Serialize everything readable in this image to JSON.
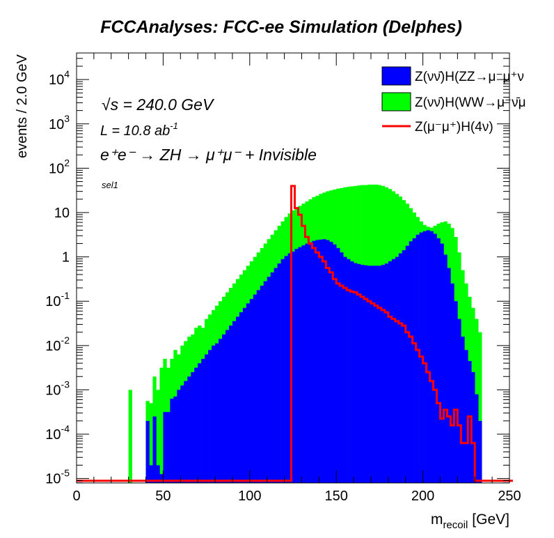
{
  "chart_data": {
    "type": "histogram",
    "title": "FCCAnalyses: FCC-ee Simulation (Delphes)",
    "xlabel_main": "m",
    "xlabel_sub": "recoil",
    "xlabel_unit": "[GeV]",
    "ylabel": "events / 2.0 GeV",
    "xlim": [
      0,
      250
    ],
    "ylim_log10": [
      -5.1,
      4.6
    ],
    "log_y": true,
    "bin_width": 2,
    "x_ticks": [
      0,
      50,
      100,
      150,
      200,
      250
    ],
    "x_tick_labels": [
      "0",
      "50",
      "100",
      "150",
      "200",
      "250"
    ],
    "y_ticks": [
      {
        "mantissa": "10",
        "exponent": "-5"
      },
      {
        "mantissa": "10",
        "exponent": "-4"
      },
      {
        "mantissa": "10",
        "exponent": "-3"
      },
      {
        "mantissa": "10",
        "exponent": "-2"
      },
      {
        "mantissa": "10",
        "exponent": "-1"
      },
      {
        "mantissa": "1",
        "exponent": ""
      },
      {
        "mantissa": "10",
        "exponent": ""
      },
      {
        "mantissa": "10",
        "exponent": "2"
      },
      {
        "mantissa": "10",
        "exponent": "3"
      },
      {
        "mantissa": "10",
        "exponent": "4"
      }
    ],
    "annotations": {
      "sqrt_s": "√s = 240.0 GeV",
      "lumi_base": "L = 10.8 ab",
      "lumi_exp": "-1",
      "process": "e⁺e⁻ → ZH → μ⁺μ⁻ + Invisible",
      "selection": "sel1"
    },
    "legend_position": "top-right",
    "series": [
      {
        "name": "Z(νν̄)H(ZZ→μ⁻μ⁺ν",
        "style": "stacked-fill",
        "color": "#0000ff",
        "log10_values": [
          [
            30,
            -5.2
          ],
          [
            38,
            -5.2
          ],
          [
            40,
            -3.7
          ],
          [
            42,
            -4.7
          ],
          [
            44,
            -3.6
          ],
          [
            46,
            -4.7
          ],
          [
            48,
            -4.9
          ],
          [
            50,
            -3.5
          ],
          [
            52,
            -3.5
          ],
          [
            54,
            -3.2
          ],
          [
            56,
            -3.15
          ],
          [
            58,
            -3.0
          ],
          [
            60,
            -2.9
          ],
          [
            62,
            -2.8
          ],
          [
            64,
            -2.7
          ],
          [
            66,
            -2.6
          ],
          [
            68,
            -2.5
          ],
          [
            70,
            -2.4
          ],
          [
            72,
            -2.3
          ],
          [
            74,
            -2.2
          ],
          [
            76,
            -2.1
          ],
          [
            78,
            -2.0
          ],
          [
            80,
            -1.95
          ],
          [
            82,
            -1.85
          ],
          [
            84,
            -1.75
          ],
          [
            86,
            -1.65
          ],
          [
            88,
            -1.55
          ],
          [
            90,
            -1.45
          ],
          [
            92,
            -1.35
          ],
          [
            94,
            -1.25
          ],
          [
            96,
            -1.15
          ],
          [
            98,
            -1.05
          ],
          [
            100,
            -0.95
          ],
          [
            102,
            -0.85
          ],
          [
            104,
            -0.75
          ],
          [
            106,
            -0.65
          ],
          [
            108,
            -0.55
          ],
          [
            110,
            -0.45
          ],
          [
            112,
            -0.35
          ],
          [
            114,
            -0.25
          ],
          [
            116,
            -0.15
          ],
          [
            118,
            -0.05
          ],
          [
            120,
            0.02
          ],
          [
            122,
            0.08
          ],
          [
            124,
            0.12
          ],
          [
            126,
            0.18
          ],
          [
            128,
            0.22
          ],
          [
            130,
            0.26
          ],
          [
            132,
            0.3
          ],
          [
            134,
            0.33
          ],
          [
            136,
            0.36
          ],
          [
            138,
            0.38
          ],
          [
            140,
            0.39
          ],
          [
            142,
            0.4
          ],
          [
            144,
            0.38
          ],
          [
            146,
            0.34
          ],
          [
            148,
            0.28
          ],
          [
            150,
            0.2
          ],
          [
            152,
            0.1
          ],
          [
            154,
            0.0
          ],
          [
            156,
            -0.05
          ],
          [
            158,
            -0.1
          ],
          [
            160,
            -0.14
          ],
          [
            162,
            -0.16
          ],
          [
            164,
            -0.18
          ],
          [
            166,
            -0.19
          ],
          [
            168,
            -0.2
          ],
          [
            170,
            -0.2
          ],
          [
            172,
            -0.2
          ],
          [
            174,
            -0.2
          ],
          [
            176,
            -0.18
          ],
          [
            178,
            -0.15
          ],
          [
            180,
            -0.1
          ],
          [
            182,
            -0.05
          ],
          [
            184,
            0.0
          ],
          [
            186,
            0.08
          ],
          [
            188,
            0.15
          ],
          [
            190,
            0.25
          ],
          [
            192,
            0.35
          ],
          [
            194,
            0.42
          ],
          [
            196,
            0.5
          ],
          [
            198,
            0.55
          ],
          [
            200,
            0.58
          ],
          [
            202,
            0.6
          ],
          [
            204,
            0.58
          ],
          [
            206,
            0.52
          ],
          [
            208,
            0.42
          ],
          [
            210,
            0.3
          ],
          [
            212,
            0.05
          ],
          [
            214,
            -0.25
          ],
          [
            216,
            -0.6
          ],
          [
            218,
            -1.0
          ],
          [
            220,
            -1.4
          ],
          [
            222,
            -1.8
          ],
          [
            224,
            -2.1
          ],
          [
            226,
            -2.35
          ],
          [
            228,
            -2.6
          ],
          [
            230,
            -3.1
          ],
          [
            232,
            -3.7
          ],
          [
            234,
            -5.2
          ]
        ]
      },
      {
        "name": "Z(νν̄)H(WW→μ⁻ν̄μ",
        "style": "stacked-fill",
        "color": "#00ff00",
        "log10_values": [
          [
            28,
            -5.2
          ],
          [
            30,
            -3.0
          ],
          [
            32,
            -5.2
          ],
          [
            38,
            -5.2
          ],
          [
            40,
            -3.25
          ],
          [
            42,
            -3.3
          ],
          [
            44,
            -2.7
          ],
          [
            46,
            -3.0
          ],
          [
            48,
            -2.5
          ],
          [
            50,
            -2.3
          ],
          [
            52,
            -2.5
          ],
          [
            54,
            -2.3
          ],
          [
            56,
            -2.1
          ],
          [
            58,
            -2.2
          ],
          [
            60,
            -2.0
          ],
          [
            62,
            -1.9
          ],
          [
            64,
            -1.8
          ],
          [
            66,
            -1.75
          ],
          [
            68,
            -1.6
          ],
          [
            70,
            -1.55
          ],
          [
            72,
            -1.6
          ],
          [
            74,
            -1.4
          ],
          [
            76,
            -1.3
          ],
          [
            78,
            -1.2
          ],
          [
            80,
            -1.1
          ],
          [
            82,
            -1.0
          ],
          [
            84,
            -0.9
          ],
          [
            86,
            -0.8
          ],
          [
            88,
            -0.7
          ],
          [
            90,
            -0.6
          ],
          [
            92,
            -0.5
          ],
          [
            94,
            -0.4
          ],
          [
            96,
            -0.3
          ],
          [
            98,
            -0.2
          ],
          [
            100,
            -0.1
          ],
          [
            102,
            0.0
          ],
          [
            104,
            0.1
          ],
          [
            106,
            0.2
          ],
          [
            108,
            0.3
          ],
          [
            110,
            0.4
          ],
          [
            112,
            0.5
          ],
          [
            114,
            0.6
          ],
          [
            116,
            0.7
          ],
          [
            118,
            0.8
          ],
          [
            120,
            0.9
          ],
          [
            122,
            0.98
          ],
          [
            124,
            1.05
          ],
          [
            126,
            1.1
          ],
          [
            128,
            1.15
          ],
          [
            130,
            1.2
          ],
          [
            132,
            1.25
          ],
          [
            134,
            1.3
          ],
          [
            136,
            1.35
          ],
          [
            138,
            1.38
          ],
          [
            140,
            1.42
          ],
          [
            142,
            1.45
          ],
          [
            144,
            1.48
          ],
          [
            146,
            1.5
          ],
          [
            148,
            1.52
          ],
          [
            150,
            1.54
          ],
          [
            152,
            1.55
          ],
          [
            154,
            1.57
          ],
          [
            156,
            1.58
          ],
          [
            158,
            1.59
          ],
          [
            160,
            1.6
          ],
          [
            162,
            1.61
          ],
          [
            164,
            1.62
          ],
          [
            166,
            1.62
          ],
          [
            168,
            1.63
          ],
          [
            170,
            1.63
          ],
          [
            172,
            1.63
          ],
          [
            174,
            1.62
          ],
          [
            176,
            1.6
          ],
          [
            178,
            1.57
          ],
          [
            180,
            1.53
          ],
          [
            182,
            1.48
          ],
          [
            184,
            1.42
          ],
          [
            186,
            1.36
          ],
          [
            188,
            1.28
          ],
          [
            190,
            1.2
          ],
          [
            192,
            1.1
          ],
          [
            194,
            1.0
          ],
          [
            196,
            0.9
          ],
          [
            198,
            0.8
          ],
          [
            200,
            0.72
          ],
          [
            202,
            0.68
          ],
          [
            204,
            0.66
          ],
          [
            206,
            0.7
          ],
          [
            208,
            0.75
          ],
          [
            210,
            0.78
          ],
          [
            212,
            0.8
          ],
          [
            214,
            0.75
          ],
          [
            216,
            0.65
          ],
          [
            218,
            0.45
          ],
          [
            220,
            0.1
          ],
          [
            222,
            -0.3
          ],
          [
            224,
            -0.6
          ],
          [
            226,
            -0.9
          ],
          [
            228,
            -1.15
          ],
          [
            230,
            -1.4
          ],
          [
            232,
            -1.7
          ],
          [
            234,
            -5.2
          ]
        ]
      },
      {
        "name": "Z(μ⁻μ⁺)H(4ν)",
        "style": "line",
        "color": "#ff0000",
        "log10_values": [
          [
            0,
            -5.05
          ],
          [
            122,
            -5.05
          ],
          [
            124,
            1.6
          ],
          [
            126,
            1.1
          ],
          [
            128,
            0.95
          ],
          [
            130,
            0.7
          ],
          [
            132,
            0.45
          ],
          [
            134,
            0.3
          ],
          [
            136,
            0.2
          ],
          [
            138,
            0.1
          ],
          [
            140,
            0.0
          ],
          [
            142,
            -0.1
          ],
          [
            144,
            -0.25
          ],
          [
            146,
            -0.35
          ],
          [
            148,
            -0.5
          ],
          [
            150,
            -0.6
          ],
          [
            152,
            -0.65
          ],
          [
            154,
            -0.7
          ],
          [
            156,
            -0.75
          ],
          [
            158,
            -0.78
          ],
          [
            160,
            -0.8
          ],
          [
            162,
            -0.85
          ],
          [
            164,
            -0.9
          ],
          [
            166,
            -0.95
          ],
          [
            168,
            -1.0
          ],
          [
            170,
            -1.05
          ],
          [
            172,
            -1.1
          ],
          [
            174,
            -1.15
          ],
          [
            176,
            -1.2
          ],
          [
            178,
            -1.25
          ],
          [
            180,
            -1.35
          ],
          [
            182,
            -1.4
          ],
          [
            184,
            -1.45
          ],
          [
            186,
            -1.5
          ],
          [
            188,
            -1.55
          ],
          [
            190,
            -1.7
          ],
          [
            192,
            -1.8
          ],
          [
            194,
            -1.95
          ],
          [
            196,
            -2.1
          ],
          [
            198,
            -2.25
          ],
          [
            200,
            -2.4
          ],
          [
            202,
            -2.6
          ],
          [
            204,
            -2.8
          ],
          [
            206,
            -3.0
          ],
          [
            208,
            -3.3
          ],
          [
            210,
            -3.65
          ],
          [
            212,
            -3.45
          ],
          [
            214,
            -3.6
          ],
          [
            216,
            -3.8
          ],
          [
            218,
            -3.45
          ],
          [
            220,
            -3.8
          ],
          [
            222,
            -4.2
          ],
          [
            224,
            -4.2
          ],
          [
            226,
            -3.6
          ],
          [
            228,
            -4.2
          ],
          [
            230,
            -5.05
          ],
          [
            250,
            -5.05
          ]
        ]
      }
    ]
  }
}
